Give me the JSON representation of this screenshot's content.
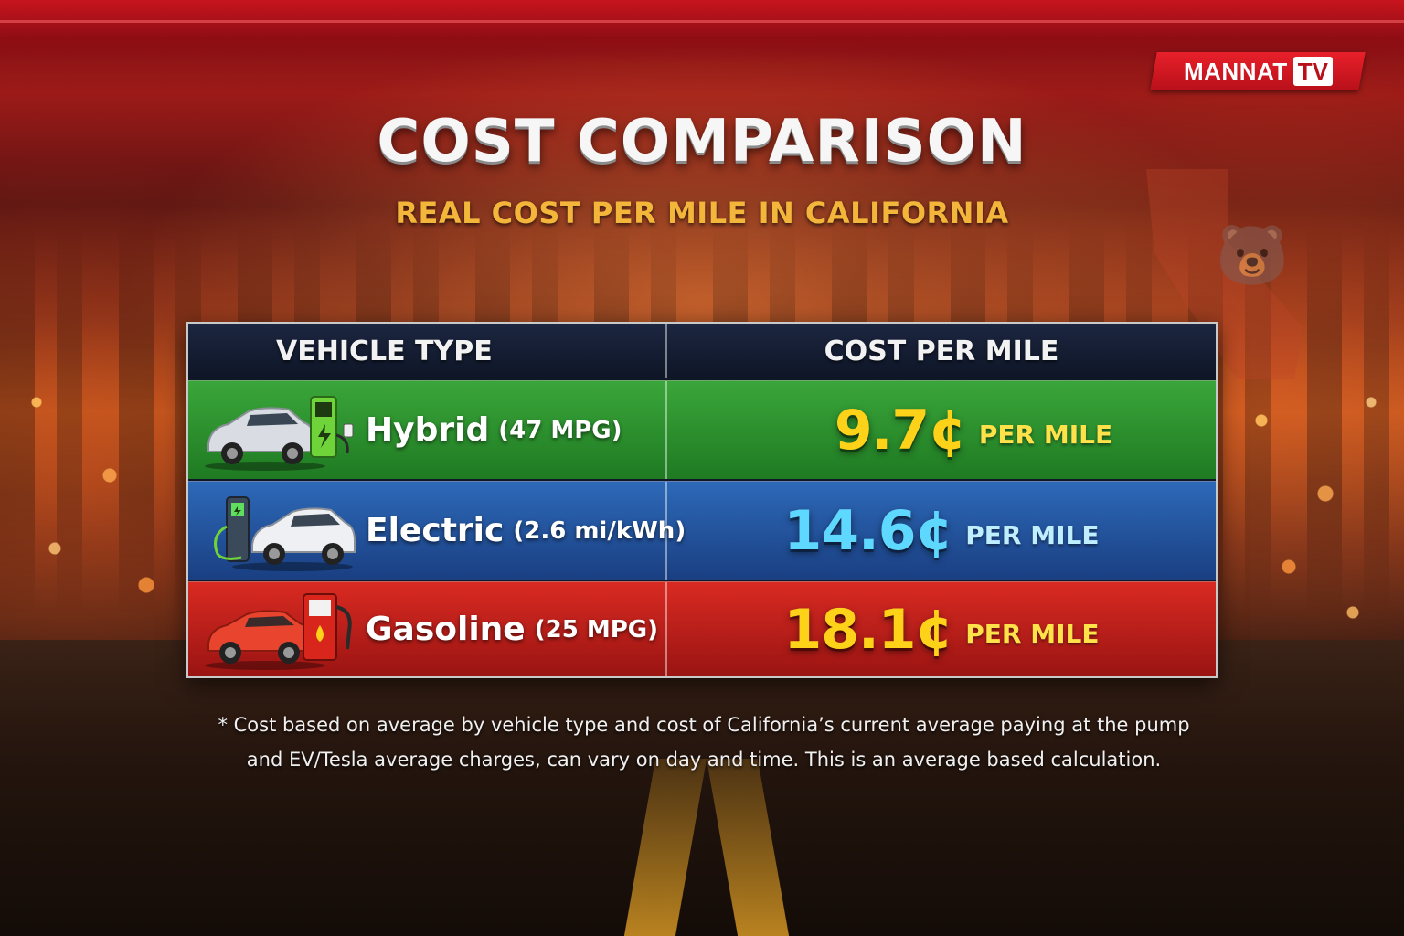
{
  "brand": {
    "name": "MANNAT",
    "tv": "TV",
    "color": "#e8202a"
  },
  "header": {
    "title": "COST COMPARISON",
    "subtitle": "REAL COST PER MILE IN CALIFORNIA"
  },
  "table": {
    "columns": [
      "VEHICLE TYPE",
      "COST PER MILE"
    ],
    "rows": [
      {
        "vehicle": "Hybrid",
        "spec": "(47 MPG)",
        "cost": "9.7¢",
        "unit": "PER MILE",
        "row_color": "#2f8f2f",
        "icon": "hybrid-car-charger-icon"
      },
      {
        "vehicle": "Electric",
        "spec": "(2.6 mi/kWh)",
        "cost": "14.6¢",
        "unit": "PER MILE",
        "row_color": "#2456a0",
        "icon": "electric-car-charger-icon"
      },
      {
        "vehicle": "Gasoline",
        "spec": "(25 MPG)",
        "cost": "18.1¢",
        "unit": "PER MILE",
        "row_color": "#c21e1a",
        "icon": "gas-car-pump-icon"
      }
    ]
  },
  "footnote": {
    "line1": "* Cost based on average by vehicle type and cost of California’s current average paying at the pump",
    "line2": "and EV/Tesla average charges, can vary on day and time. This is an average based calculation."
  },
  "decor": {
    "state_icon": "california-state-icon",
    "bear_icon": "bear-icon"
  }
}
